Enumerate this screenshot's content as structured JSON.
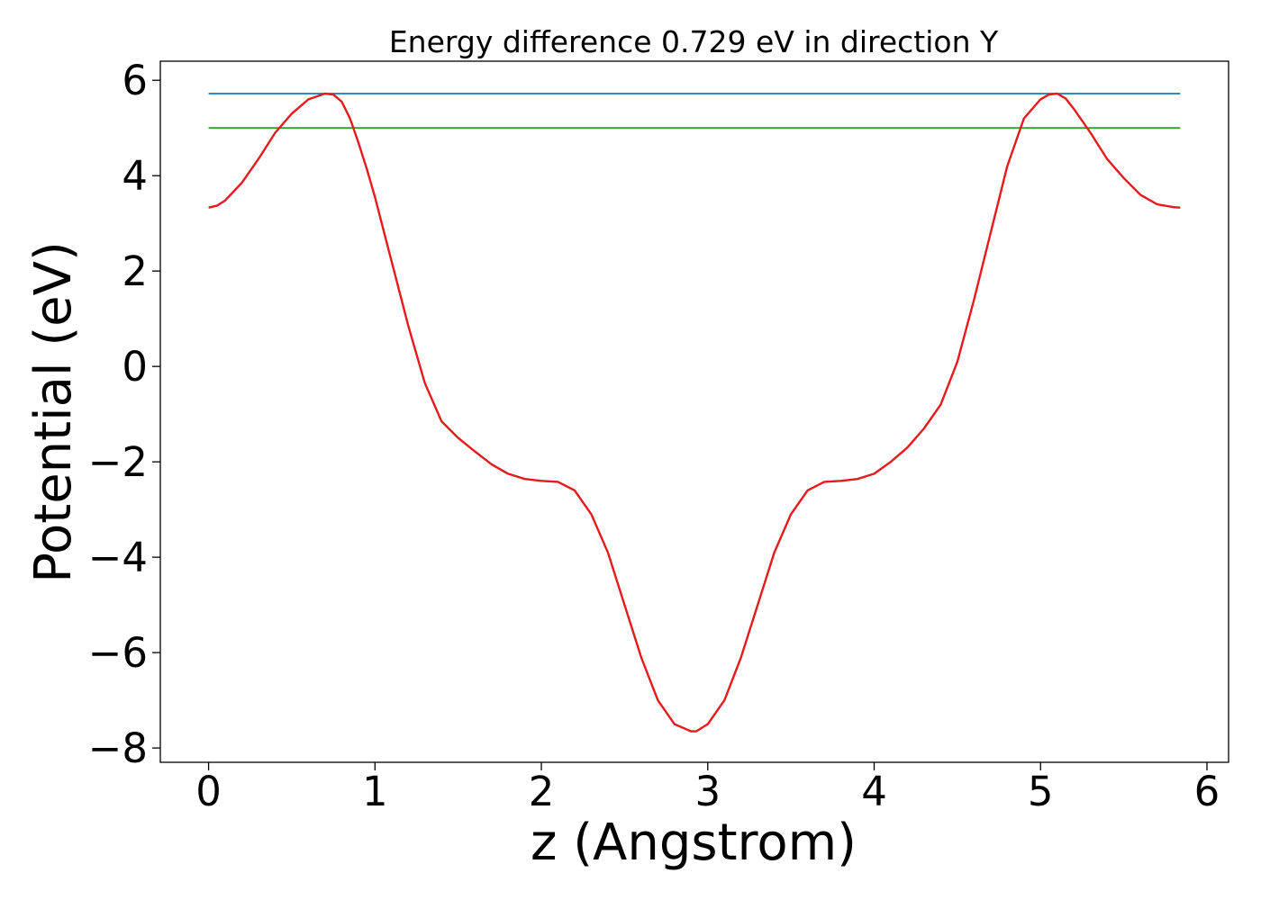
{
  "chart_data": {
    "type": "line",
    "title": "Energy difference 0.729 eV in direction Y",
    "xlabel": "z (Angstrom)",
    "ylabel": "Potential (eV)",
    "xlim": [
      -0.29,
      6.13
    ],
    "ylim": [
      -8.3,
      6.4
    ],
    "xticks": [
      0,
      1,
      2,
      3,
      4,
      5,
      6
    ],
    "yticks": [
      -8,
      -6,
      -4,
      -2,
      0,
      2,
      4,
      6
    ],
    "xtick_labels": [
      "0",
      "1",
      "2",
      "3",
      "4",
      "5",
      "6"
    ],
    "ytick_labels": [
      "−8",
      "−6",
      "−4",
      "−2",
      "0",
      "2",
      "4",
      "6"
    ],
    "grid": false,
    "legend": "none",
    "series": [
      {
        "color": "#1f77b4",
        "x": [
          0,
          5.84
        ],
        "y": [
          5.72,
          5.72
        ]
      },
      {
        "color": "#2ca02c",
        "x": [
          0,
          5.84
        ],
        "y": [
          5.0,
          5.0
        ]
      },
      {
        "color": "#e41a1c",
        "x": [
          0,
          0.05,
          0.1,
          0.2,
          0.3,
          0.4,
          0.5,
          0.6,
          0.7,
          0.75,
          0.8,
          0.85,
          0.9,
          0.95,
          1.0,
          1.1,
          1.2,
          1.3,
          1.4,
          1.5,
          1.6,
          1.7,
          1.8,
          1.9,
          2.0,
          2.1,
          2.2,
          2.3,
          2.4,
          2.5,
          2.6,
          2.7,
          2.8,
          2.9,
          2.93,
          3.0,
          3.1,
          3.2,
          3.3,
          3.4,
          3.5,
          3.6,
          3.7,
          3.8,
          3.9,
          4.0,
          4.1,
          4.2,
          4.3,
          4.4,
          4.5,
          4.6,
          4.7,
          4.8,
          4.9,
          5.0,
          5.05,
          5.1,
          5.15,
          5.2,
          5.3,
          5.4,
          5.5,
          5.6,
          5.7,
          5.8,
          5.84
        ],
        "y": [
          3.33,
          3.37,
          3.48,
          3.85,
          4.35,
          4.9,
          5.3,
          5.6,
          5.72,
          5.7,
          5.55,
          5.2,
          4.7,
          4.15,
          3.55,
          2.2,
          0.85,
          -0.35,
          -1.15,
          -1.5,
          -1.78,
          -2.05,
          -2.25,
          -2.36,
          -2.4,
          -2.42,
          -2.6,
          -3.1,
          -3.9,
          -5.0,
          -6.1,
          -7.0,
          -7.5,
          -7.65,
          -7.65,
          -7.5,
          -7.0,
          -6.1,
          -5.0,
          -3.9,
          -3.1,
          -2.6,
          -2.42,
          -2.4,
          -2.36,
          -2.25,
          -2.0,
          -1.7,
          -1.3,
          -0.8,
          0.1,
          1.4,
          2.8,
          4.2,
          5.2,
          5.6,
          5.7,
          5.72,
          5.62,
          5.4,
          4.9,
          4.35,
          3.95,
          3.6,
          3.4,
          3.34,
          3.33
        ]
      }
    ]
  }
}
